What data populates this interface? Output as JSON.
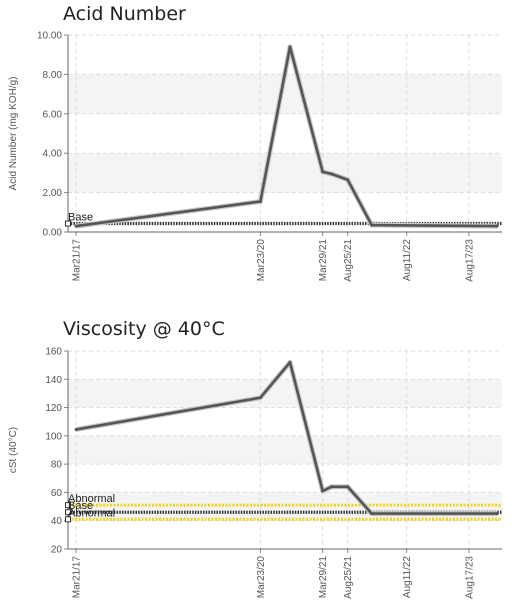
{
  "chart_data": [
    {
      "type": "line",
      "title": "Acid Number",
      "ylabel": "Acid Number (mg KOH/g)",
      "xlabel": "",
      "ylim": [
        0,
        10
      ],
      "yticks": [
        "0.00",
        "2.00",
        "4.00",
        "6.00",
        "8.00",
        "10.00"
      ],
      "ytick_values": [
        0,
        2,
        4,
        6,
        8,
        10
      ],
      "xlim": [
        "2017-02-01",
        "2024-03-01"
      ],
      "xticks": [
        "Mar21/17",
        "Mar23/20",
        "Mar29/21",
        "Aug25/21",
        "Aug11/22",
        "Aug17/23"
      ],
      "xtick_dates": [
        "2017-03-21",
        "2020-03-23",
        "2021-03-29",
        "2021-08-25",
        "2022-08-11",
        "2023-08-17"
      ],
      "grid": true,
      "series": [
        {
          "x": [
            "2017-03-21",
            "2020-03-23",
            "2020-09-15",
            "2021-03-29",
            "2021-05-20",
            "2021-08-25",
            "2022-01-15",
            "2024-02-01"
          ],
          "values": [
            0.3,
            1.55,
            9.4,
            3.05,
            2.95,
            2.65,
            0.35,
            0.3
          ]
        }
      ],
      "reference_lines": [
        {
          "label": "Base",
          "value": 0.43,
          "color": "#333333",
          "style": "dotted"
        }
      ]
    },
    {
      "type": "line",
      "title": "Viscosity @ 40°C",
      "ylabel": "cSt (40°C)",
      "xlabel": "",
      "ylim": [
        20,
        160
      ],
      "yticks": [
        "20",
        "40",
        "60",
        "80",
        "100",
        "120",
        "140",
        "160"
      ],
      "ytick_values": [
        20,
        40,
        60,
        80,
        100,
        120,
        140,
        160
      ],
      "xlim": [
        "2017-02-01",
        "2024-03-01"
      ],
      "xticks": [
        "Mar21/17",
        "Mar23/20",
        "Mar29/21",
        "Aug25/21",
        "Aug11/22",
        "Aug17/23"
      ],
      "xtick_dates": [
        "2017-03-21",
        "2020-03-23",
        "2021-03-29",
        "2021-08-25",
        "2022-08-11",
        "2023-08-17"
      ],
      "grid": true,
      "series": [
        {
          "x": [
            "2017-03-21",
            "2020-03-23",
            "2020-09-15",
            "2021-03-29",
            "2021-05-20",
            "2021-08-25",
            "2022-01-15",
            "2024-02-01"
          ],
          "values": [
            104.5,
            127,
            152,
            61,
            64,
            64,
            45,
            45
          ]
        }
      ],
      "reference_lines": [
        {
          "label": "Abnormal",
          "value": 51,
          "color": "#f2d21b",
          "style": "dotted"
        },
        {
          "label": "Base",
          "value": 46,
          "color": "#333333",
          "style": "dotted"
        },
        {
          "label": "Abnormal",
          "value": 41,
          "color": "#f2d21b",
          "style": "dotted"
        }
      ]
    }
  ]
}
